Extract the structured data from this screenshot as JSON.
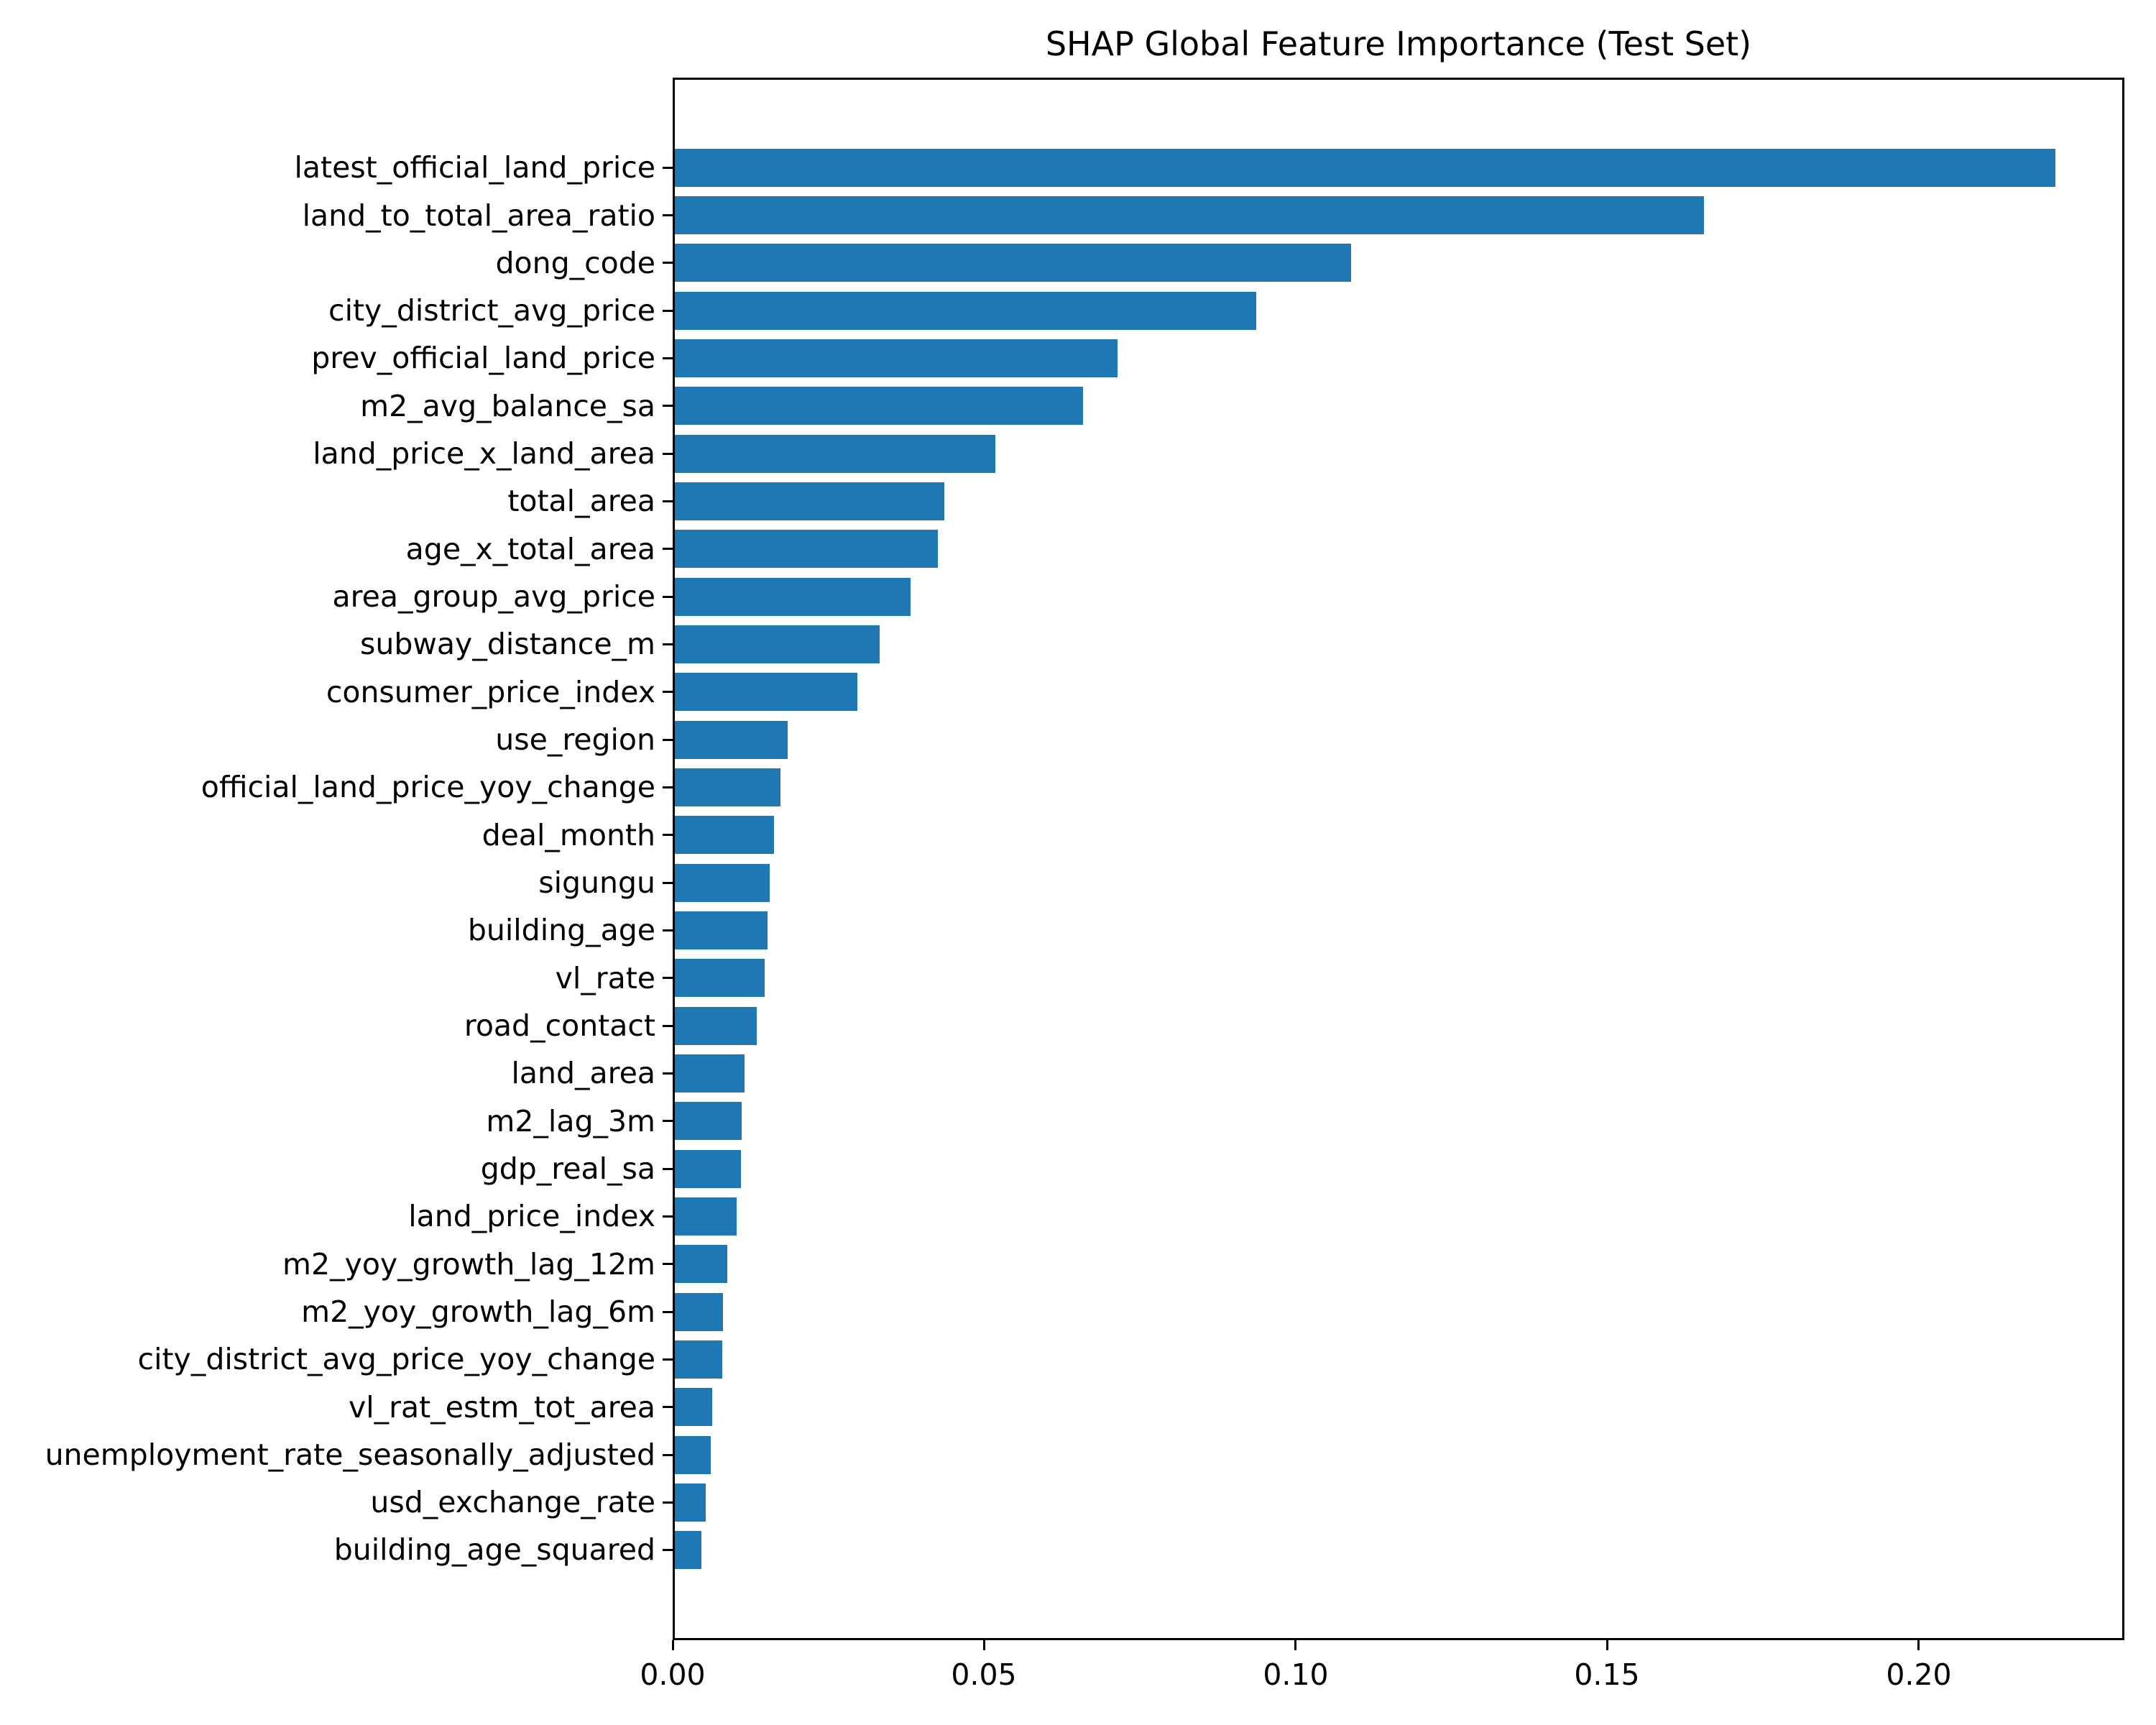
{
  "chart_data": {
    "type": "bar",
    "orientation": "horizontal",
    "title": "SHAP Global Feature Importance (Test Set)",
    "xlabel": "",
    "ylabel": "",
    "grid": false,
    "legend": null,
    "bar_color": "#1f77b4",
    "xlim": [
      0,
      0.233
    ],
    "xticks": [
      0.0,
      0.05,
      0.1,
      0.15,
      0.2
    ],
    "xtick_labels": [
      "0.00",
      "0.05",
      "0.10",
      "0.15",
      "0.20"
    ],
    "categories": [
      "latest_official_land_price",
      "land_to_total_area_ratio",
      "dong_code",
      "city_district_avg_price",
      "prev_official_land_price",
      "m2_avg_balance_sa",
      "land_price_x_land_area",
      "total_area",
      "age_x_total_area",
      "area_group_avg_price",
      "subway_distance_m",
      "consumer_price_index",
      "use_region",
      "official_land_price_yoy_change",
      "deal_month",
      "sigungu",
      "building_age",
      "vl_rate",
      "road_contact",
      "land_area",
      "m2_lag_3m",
      "gdp_real_sa",
      "land_price_index",
      "m2_yoy_growth_lag_12m",
      "m2_yoy_growth_lag_6m",
      "city_district_avg_price_yoy_change",
      "vl_rat_estm_tot_area",
      "unemployment_rate_seasonally_adjusted",
      "usd_exchange_rate",
      "building_age_squared"
    ],
    "values": [
      0.2219,
      0.1655,
      0.1089,
      0.0937,
      0.0714,
      0.0659,
      0.0518,
      0.0436,
      0.0426,
      0.0382,
      0.0332,
      0.0297,
      0.0184,
      0.0173,
      0.0163,
      0.0156,
      0.0152,
      0.0148,
      0.0135,
      0.0115,
      0.0111,
      0.011,
      0.0103,
      0.0088,
      0.0081,
      0.008,
      0.0063,
      0.0061,
      0.0053,
      0.0046
    ]
  },
  "colors": {
    "bar": "#1f77b4",
    "text": "#000000",
    "spine": "#000000",
    "background": "#ffffff"
  }
}
